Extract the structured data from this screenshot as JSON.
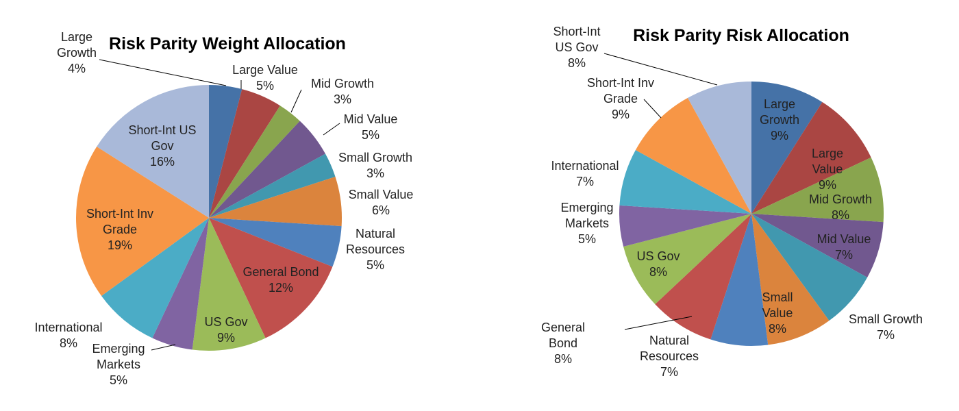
{
  "chart_data": [
    {
      "type": "pie",
      "title": "Risk Parity Weight Allocation",
      "slices": [
        {
          "label": "Large Growth",
          "value": 4,
          "value_label": "4%",
          "color": "#4572A7"
        },
        {
          "label": "Large Value",
          "value": 5,
          "value_label": "5%",
          "color": "#AA4643"
        },
        {
          "label": "Mid Growth",
          "value": 3,
          "value_label": "3%",
          "color": "#89A54E"
        },
        {
          "label": "Mid Value",
          "value": 5,
          "value_label": "5%",
          "color": "#71588F"
        },
        {
          "label": "Small Growth",
          "value": 3,
          "value_label": "3%",
          "color": "#4198AF"
        },
        {
          "label": "Small Value",
          "value": 6,
          "value_label": "6%",
          "color": "#DB843D"
        },
        {
          "label": "Natural Resources",
          "value": 5,
          "value_label": "5%",
          "color": "#4F81BD"
        },
        {
          "label": "General Bond",
          "value": 12,
          "value_label": "12%",
          "color": "#C0504D"
        },
        {
          "label": "US Gov",
          "value": 9,
          "value_label": "9%",
          "color": "#9BBB59"
        },
        {
          "label": "Emerging Markets",
          "value": 5,
          "value_label": "5%",
          "color": "#8064A2"
        },
        {
          "label": "International",
          "value": 8,
          "value_label": "8%",
          "color": "#4BACC6"
        },
        {
          "label": "Short-Int Inv Grade",
          "value": 19,
          "value_label": "19%",
          "color": "#F79646"
        },
        {
          "label": "Short-Int US Gov",
          "value": 16,
          "value_label": "16%",
          "color": "#A9B9D9"
        }
      ]
    },
    {
      "type": "pie",
      "title": "Risk Parity Risk Allocation",
      "slices": [
        {
          "label": "Large Growth",
          "value": 9,
          "value_label": "9%",
          "color": "#4572A7"
        },
        {
          "label": "Large Value",
          "value": 9,
          "value_label": "9%",
          "color": "#AA4643"
        },
        {
          "label": "Mid Growth",
          "value": 8,
          "value_label": "8%",
          "color": "#89A54E"
        },
        {
          "label": "Mid Value",
          "value": 7,
          "value_label": "7%",
          "color": "#71588F"
        },
        {
          "label": "Small Growth",
          "value": 7,
          "value_label": "7%",
          "color": "#4198AF"
        },
        {
          "label": "Small Value",
          "value": 8,
          "value_label": "8%",
          "color": "#DB843D"
        },
        {
          "label": "Natural Resources",
          "value": 7,
          "value_label": "7%",
          "color": "#4F81BD"
        },
        {
          "label": "General Bond",
          "value": 8,
          "value_label": "8%",
          "color": "#C0504D"
        },
        {
          "label": "US Gov",
          "value": 8,
          "value_label": "8%",
          "color": "#9BBB59"
        },
        {
          "label": "Emerging Markets",
          "value": 5,
          "value_label": "5%",
          "color": "#8064A2"
        },
        {
          "label": "International",
          "value": 7,
          "value_label": "7%",
          "color": "#4BACC6"
        },
        {
          "label": "Short-Int Inv Grade",
          "value": 9,
          "value_label": "9%",
          "color": "#F79646"
        },
        {
          "label": "Short-Int US Gov",
          "value": 8,
          "value_label": "8%",
          "color": "#A9B9D9"
        }
      ]
    }
  ]
}
